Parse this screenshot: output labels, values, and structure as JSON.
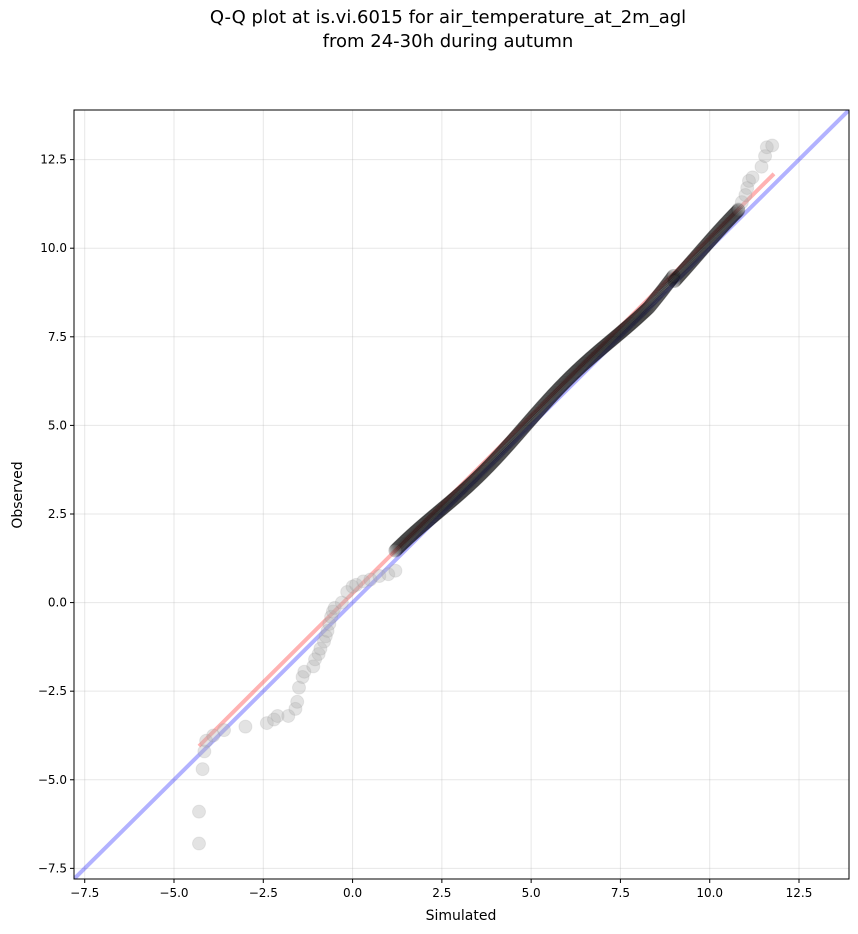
{
  "chart_data": {
    "type": "scatter",
    "title_lines": [
      "Q-Q plot at is.vi.6015 for air_temperature_at_2m_agl",
      "from 24-30h during autumn"
    ],
    "xlabel": "Simulated",
    "ylabel": "Observed",
    "xlim": [
      -7.8,
      13.9
    ],
    "ylim": [
      -7.8,
      13.9
    ],
    "xticks": [
      -7.5,
      -5.0,
      -2.5,
      0.0,
      2.5,
      5.0,
      7.5,
      10.0,
      12.5
    ],
    "yticks": [
      -7.5,
      -5.0,
      -2.5,
      0.0,
      2.5,
      5.0,
      7.5,
      10.0,
      12.5
    ],
    "xtick_labels": [
      "−7.5",
      "−5.0",
      "−2.5",
      "0.0",
      "2.5",
      "5.0",
      "7.5",
      "10.0",
      "12.5"
    ],
    "ytick_labels": [
      "−7.5",
      "−5.0",
      "−2.5",
      "0.0",
      "2.5",
      "5.0",
      "7.5",
      "10.0",
      "12.5"
    ],
    "grid": true,
    "colors": {
      "quantile_points": "#000000",
      "tail_points": "#b0b0b0",
      "fit_line": "#ff0000",
      "identity_line": "#0000ff"
    },
    "tail_points": [
      [
        -4.3,
        -6.8
      ],
      [
        -4.3,
        -5.9
      ],
      [
        -4.2,
        -4.7
      ],
      [
        -4.15,
        -4.2
      ],
      [
        -4.1,
        -3.9
      ],
      [
        -3.9,
        -3.75
      ],
      [
        -3.6,
        -3.6
      ],
      [
        -3.0,
        -3.5
      ],
      [
        -2.4,
        -3.4
      ],
      [
        -2.2,
        -3.3
      ],
      [
        -2.1,
        -3.2
      ],
      [
        -1.8,
        -3.2
      ],
      [
        -1.6,
        -3.0
      ],
      [
        -1.55,
        -2.8
      ],
      [
        -1.5,
        -2.4
      ],
      [
        -1.4,
        -2.1
      ],
      [
        -1.35,
        -1.95
      ],
      [
        -1.1,
        -1.8
      ],
      [
        -1.05,
        -1.6
      ],
      [
        -0.95,
        -1.45
      ],
      [
        -0.9,
        -1.3
      ],
      [
        -0.8,
        -1.1
      ],
      [
        -0.75,
        -0.95
      ],
      [
        -0.7,
        -0.8
      ],
      [
        -0.65,
        -0.6
      ],
      [
        -0.6,
        -0.4
      ],
      [
        -0.55,
        -0.25
      ],
      [
        -0.5,
        -0.15
      ],
      [
        -0.3,
        0.0
      ],
      [
        -0.15,
        0.3
      ],
      [
        0.0,
        0.45
      ],
      [
        0.1,
        0.5
      ],
      [
        0.3,
        0.6
      ],
      [
        0.5,
        0.65
      ],
      [
        0.75,
        0.75
      ],
      [
        1.0,
        0.8
      ],
      [
        1.2,
        0.9
      ],
      [
        10.8,
        11.1
      ],
      [
        10.9,
        11.3
      ],
      [
        11.0,
        11.5
      ],
      [
        11.05,
        11.7
      ],
      [
        11.1,
        11.9
      ],
      [
        11.2,
        12.0
      ],
      [
        11.45,
        12.3
      ],
      [
        11.55,
        12.6
      ],
      [
        11.6,
        12.85
      ],
      [
        11.75,
        12.9
      ]
    ],
    "body_range": [
      1.2,
      10.8
    ],
    "fit_line": {
      "x": [
        -4.3,
        11.8
      ],
      "y": [
        -4.05,
        12.1
      ]
    },
    "identity_line": {
      "x": [
        -7.8,
        13.9
      ],
      "y": [
        -7.8,
        13.9
      ]
    }
  }
}
